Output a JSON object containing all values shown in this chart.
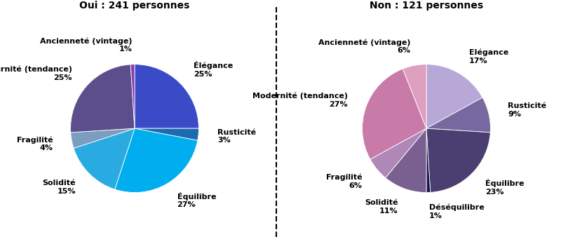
{
  "left_title": "Oui : 241 personnes",
  "right_title": "Non : 121 personnes",
  "left_labels": [
    "Élégance",
    "Rusticité",
    "Équilibre",
    "Solidité",
    "Fragilité",
    "Modernité (tendance)",
    "Ancienneté (vintage)"
  ],
  "left_values": [
    25,
    3,
    27,
    15,
    4,
    25,
    1
  ],
  "left_colors": [
    "#3B4BC8",
    "#1E6AB0",
    "#00AEEF",
    "#29ABE2",
    "#7B9DC0",
    "#5C4E8A",
    "#8B3DAF"
  ],
  "right_labels": [
    "Elégance",
    "Rusticité",
    "Équilibre",
    "Déséquilibre",
    "Solidité",
    "Fragilité",
    "Modernité (tendance)",
    "Ancienneté (vintage)"
  ],
  "right_values": [
    17,
    9,
    23,
    1,
    11,
    6,
    27,
    6
  ],
  "right_colors": [
    "#B8A8D8",
    "#7868A0",
    "#4A3F70",
    "#1A1848",
    "#7A6090",
    "#B088B8",
    "#C87AA8",
    "#DFA0C0"
  ],
  "label_fontsize": 8,
  "title_fontsize": 10
}
